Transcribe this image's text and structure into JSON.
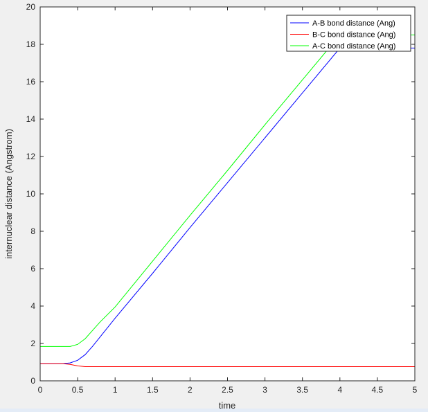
{
  "chart_data": {
    "type": "line",
    "title": "",
    "xlabel": "time",
    "ylabel": "internuclear distance (Angstrom)",
    "xlim": [
      0,
      5
    ],
    "ylim": [
      0,
      20
    ],
    "xticks": [
      "0",
      "0.5",
      "1",
      "1.5",
      "2",
      "2.5",
      "3",
      "3.5",
      "4",
      "4.5",
      "5"
    ],
    "yticks": [
      "0",
      "2",
      "4",
      "6",
      "8",
      "10",
      "12",
      "14",
      "16",
      "18",
      "20"
    ],
    "grid": false,
    "legend_position": "top-right",
    "series": [
      {
        "name": "A-B bond distance (Ang)",
        "color": "#0000ff",
        "x": [
          0,
          0.3,
          0.4,
          0.5,
          0.6,
          0.7,
          0.8,
          1.0,
          1.5,
          2.0,
          2.5,
          3.0,
          3.5,
          4.0,
          4.5,
          5.0
        ],
        "y": [
          0.92,
          0.92,
          0.96,
          1.1,
          1.4,
          1.85,
          2.35,
          3.35,
          5.75,
          8.2,
          10.6,
          13.0,
          15.4,
          17.8,
          17.8,
          17.8
        ]
      },
      {
        "name": "B-C bond distance (Ang)",
        "color": "#ff0000",
        "x": [
          0,
          0.3,
          0.4,
          0.5,
          0.6,
          1.0,
          1.5,
          2.0,
          2.5,
          3.0,
          3.5,
          4.0,
          4.5,
          5.0
        ],
        "y": [
          0.92,
          0.92,
          0.88,
          0.8,
          0.76,
          0.76,
          0.76,
          0.76,
          0.76,
          0.76,
          0.76,
          0.76,
          0.76,
          0.76
        ]
      },
      {
        "name": "A-C bond distance (Ang)",
        "color": "#00ff00",
        "x": [
          0,
          0.4,
          0.5,
          0.6,
          0.7,
          0.8,
          1.0,
          1.5,
          2.0,
          2.5,
          3.0,
          3.5,
          4.0,
          4.5,
          5.0
        ],
        "y": [
          1.84,
          1.84,
          1.95,
          2.25,
          2.7,
          3.15,
          3.95,
          6.4,
          8.85,
          11.25,
          13.7,
          16.1,
          18.5,
          18.5,
          18.5
        ]
      }
    ]
  }
}
